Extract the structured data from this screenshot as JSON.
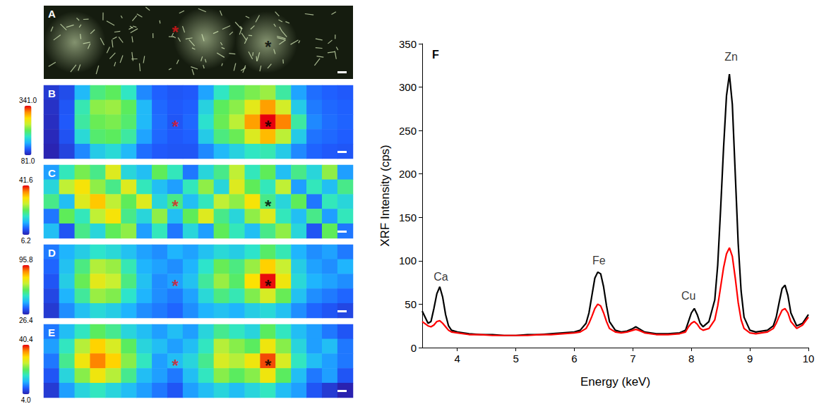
{
  "chart_data": [
    {
      "panel": "A",
      "type": "image",
      "markers": [
        {
          "text": "*",
          "color": "#e8151b",
          "col": 8,
          "row": 1
        },
        {
          "text": "*",
          "color": "#000000",
          "col": 14,
          "row": 2
        }
      ]
    },
    {
      "panel": "B",
      "type": "heatmap",
      "cells": [
        [
          95,
          105,
          150,
          200,
          210,
          180,
          130,
          115,
          110,
          112,
          140,
          180,
          205,
          220,
          230,
          190,
          140,
          120,
          115,
          112
        ],
        [
          90,
          110,
          185,
          225,
          230,
          210,
          150,
          118,
          112,
          115,
          165,
          210,
          225,
          260,
          300,
          250,
          160,
          125,
          118,
          115
        ],
        [
          88,
          112,
          190,
          215,
          220,
          205,
          150,
          120,
          110,
          118,
          175,
          215,
          240,
          300,
          341,
          310,
          190,
          130,
          120,
          116
        ],
        [
          85,
          108,
          170,
          205,
          210,
          190,
          140,
          118,
          112,
          115,
          160,
          200,
          215,
          255,
          290,
          240,
          160,
          122,
          118,
          114
        ],
        [
          82,
          100,
          130,
          160,
          170,
          150,
          120,
          112,
          110,
          110,
          130,
          150,
          165,
          180,
          185,
          160,
          130,
          116,
          112,
          110
        ]
      ],
      "colorbar": {
        "range": [
          81,
          341
        ],
        "ticks": [
          {
            "value": 341,
            "label": "341.0"
          },
          {
            "value": 81,
            "label": "81.0"
          }
        ]
      },
      "markers": [
        {
          "text": "*",
          "color": "#e8151b",
          "col": 8,
          "row": 2
        },
        {
          "text": "*",
          "color": "#000000",
          "col": 14,
          "row": 2
        }
      ]
    },
    {
      "panel": "C",
      "type": "heatmap",
      "cells": [
        [
          14,
          20,
          25,
          22,
          30,
          18,
          16,
          24,
          20,
          12,
          18,
          22,
          28,
          20,
          24,
          16,
          22,
          18,
          26,
          14
        ],
        [
          18,
          28,
          32,
          26,
          22,
          30,
          20,
          16,
          14,
          20,
          26,
          18,
          30,
          24,
          20,
          28,
          14,
          20,
          16,
          22
        ],
        [
          22,
          16,
          30,
          34,
          28,
          24,
          30,
          18,
          22,
          16,
          20,
          28,
          26,
          32,
          22,
          18,
          24,
          12,
          20,
          18
        ],
        [
          12,
          24,
          20,
          28,
          32,
          22,
          18,
          26,
          16,
          24,
          30,
          22,
          18,
          26,
          30,
          20,
          16,
          22,
          14,
          20
        ],
        [
          16,
          10,
          22,
          18,
          24,
          26,
          14,
          20,
          12,
          18,
          14,
          24,
          20,
          16,
          22,
          26,
          18,
          10,
          24,
          12
        ]
      ],
      "colorbar": {
        "range": [
          6.2,
          41.6
        ],
        "ticks": [
          41.6,
          6.2
        ]
      },
      "markers": [
        {
          "text": "*",
          "color": "#e8151b",
          "col": 8,
          "row": 2
        },
        {
          "text": "*",
          "color": "#000000",
          "col": 14,
          "row": 2
        }
      ]
    },
    {
      "panel": "D",
      "type": "heatmap",
      "cells": [
        [
          38,
          44,
          48,
          52,
          50,
          46,
          42,
          40,
          44,
          42,
          46,
          50,
          48,
          52,
          60,
          54,
          44,
          40,
          42,
          38
        ],
        [
          36,
          46,
          58,
          68,
          66,
          54,
          44,
          42,
          40,
          44,
          52,
          62,
          58,
          66,
          80,
          70,
          48,
          42,
          40,
          44
        ],
        [
          34,
          48,
          62,
          74,
          70,
          58,
          46,
          40,
          42,
          46,
          56,
          66,
          60,
          78,
          95,
          76,
          50,
          44,
          42,
          40
        ],
        [
          32,
          44,
          56,
          66,
          64,
          52,
          44,
          40,
          38,
          42,
          50,
          58,
          54,
          64,
          72,
          62,
          46,
          40,
          38,
          36
        ],
        [
          30,
          40,
          46,
          50,
          48,
          44,
          40,
          38,
          36,
          40,
          44,
          46,
          44,
          48,
          50,
          46,
          40,
          36,
          34,
          32
        ]
      ],
      "colorbar": {
        "range": [
          26.4,
          95.8
        ],
        "ticks": [
          95.8,
          26.4
        ]
      },
      "markers": [
        {
          "text": "*",
          "color": "#e8151b",
          "col": 8,
          "row": 2
        },
        {
          "text": "*",
          "color": "#000000",
          "col": 14,
          "row": 2
        }
      ]
    },
    {
      "panel": "E",
      "type": "heatmap",
      "cells": [
        [
          10,
          14,
          18,
          22,
          20,
          16,
          14,
          12,
          14,
          12,
          16,
          20,
          18,
          16,
          22,
          18,
          14,
          12,
          10,
          8
        ],
        [
          12,
          18,
          26,
          32,
          28,
          22,
          16,
          14,
          12,
          14,
          18,
          26,
          24,
          22,
          30,
          24,
          16,
          12,
          14,
          10
        ],
        [
          10,
          20,
          30,
          36,
          32,
          24,
          18,
          12,
          14,
          16,
          20,
          28,
          26,
          30,
          38,
          28,
          18,
          14,
          12,
          10
        ],
        [
          8,
          16,
          24,
          30,
          26,
          20,
          14,
          12,
          10,
          14,
          18,
          24,
          22,
          24,
          30,
          22,
          14,
          10,
          12,
          8
        ],
        [
          6,
          12,
          16,
          18,
          16,
          14,
          12,
          10,
          8,
          12,
          14,
          16,
          14,
          16,
          18,
          14,
          12,
          8,
          6,
          4
        ]
      ],
      "colorbar": {
        "range": [
          4,
          40.4
        ],
        "ticks": [
          40.4,
          {
            "value": 4,
            "label": "4.0"
          }
        ]
      },
      "markers": [
        {
          "text": "*",
          "color": "#e8151b",
          "col": 8,
          "row": 2
        },
        {
          "text": "*",
          "color": "#000000",
          "col": 14,
          "row": 2
        }
      ]
    },
    {
      "panel": "F",
      "type": "line",
      "xlabel": "Energy (keV)",
      "ylabel": "XRF Intensity (cps)",
      "x": [
        3.4,
        3.5,
        3.55,
        3.6,
        3.65,
        3.7,
        3.75,
        3.8,
        3.85,
        3.9,
        4.0,
        4.2,
        4.4,
        4.6,
        4.8,
        5.0,
        5.2,
        5.4,
        5.6,
        5.8,
        6.0,
        6.1,
        6.2,
        6.25,
        6.3,
        6.35,
        6.4,
        6.45,
        6.5,
        6.55,
        6.6,
        6.7,
        6.8,
        6.9,
        7.0,
        7.05,
        7.1,
        7.2,
        7.4,
        7.6,
        7.8,
        7.9,
        7.95,
        8.0,
        8.05,
        8.1,
        8.15,
        8.2,
        8.3,
        8.4,
        8.45,
        8.5,
        8.55,
        8.6,
        8.65,
        8.7,
        8.75,
        8.8,
        8.85,
        8.9,
        9.0,
        9.1,
        9.2,
        9.3,
        9.4,
        9.45,
        9.5,
        9.55,
        9.6,
        9.65,
        9.7,
        9.8,
        9.9,
        10.0
      ],
      "series": [
        {
          "color": "#000000",
          "values": [
            42,
            28,
            30,
            45,
            62,
            70,
            58,
            38,
            25,
            20,
            18,
            16,
            15,
            15,
            14,
            14,
            15,
            15,
            16,
            17,
            18,
            20,
            28,
            40,
            60,
            80,
            87,
            85,
            70,
            48,
            30,
            20,
            18,
            19,
            22,
            24,
            22,
            18,
            16,
            16,
            17,
            20,
            30,
            40,
            45,
            38,
            28,
            24,
            30,
            55,
            95,
            160,
            230,
            290,
            315,
            280,
            200,
            120,
            65,
            35,
            20,
            18,
            19,
            20,
            25,
            35,
            52,
            68,
            72,
            60,
            40,
            25,
            28,
            38
          ]
        },
        {
          "color": "#ff0000",
          "values": [
            30,
            25,
            24,
            26,
            30,
            31,
            28,
            24,
            20,
            18,
            17,
            15,
            15,
            14,
            14,
            14,
            14,
            15,
            15,
            16,
            17,
            18,
            22,
            28,
            36,
            45,
            50,
            48,
            40,
            30,
            22,
            18,
            17,
            18,
            20,
            21,
            20,
            17,
            15,
            15,
            16,
            18,
            24,
            28,
            30,
            27,
            22,
            20,
            22,
            32,
            48,
            70,
            92,
            108,
            115,
            105,
            80,
            52,
            32,
            22,
            17,
            16,
            17,
            18,
            22,
            28,
            36,
            43,
            45,
            40,
            30,
            22,
            26,
            35
          ]
        }
      ],
      "xlim": [
        3.4,
        10
      ],
      "xticks": [
        4,
        5,
        6,
        7,
        8,
        9,
        10
      ],
      "ylim": [
        0,
        350
      ],
      "yticks": [
        0,
        50,
        100,
        150,
        200,
        250,
        300,
        350
      ],
      "grid": false,
      "annotations": [
        {
          "text": "Ca",
          "x": 3.72,
          "y": 82
        },
        {
          "text": "Fe",
          "x": 6.42,
          "y": 100
        },
        {
          "text": "Cu",
          "x": 7.95,
          "y": 60
        },
        {
          "text": "Zn",
          "x": 8.68,
          "y": 335
        }
      ]
    }
  ]
}
